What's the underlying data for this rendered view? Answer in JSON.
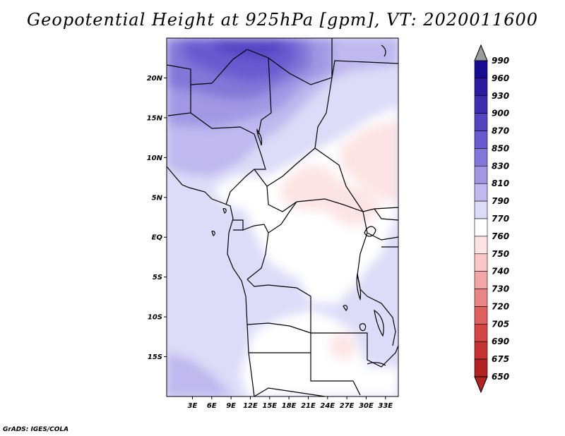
{
  "title": "Geopotential Height at 925hPa [gpm], VT: 2020011600",
  "credit": "GrADS: IGES/COLA",
  "map": {
    "lon_range": [
      -1,
      35
    ],
    "lat_range": [
      -20,
      25
    ],
    "lat_ticks": [
      {
        "value": 20,
        "label": "20N"
      },
      {
        "value": 15,
        "label": "15N"
      },
      {
        "value": 10,
        "label": "10N"
      },
      {
        "value": 5,
        "label": "5N"
      },
      {
        "value": 0,
        "label": "EQ"
      },
      {
        "value": -5,
        "label": "5S"
      },
      {
        "value": -10,
        "label": "10S"
      },
      {
        "value": -15,
        "label": "15S"
      }
    ],
    "lon_ticks": [
      {
        "value": 3,
        "label": "3E"
      },
      {
        "value": 6,
        "label": "6E"
      },
      {
        "value": 9,
        "label": "9E"
      },
      {
        "value": 12,
        "label": "12E"
      },
      {
        "value": 15,
        "label": "15E"
      },
      {
        "value": 18,
        "label": "18E"
      },
      {
        "value": 21,
        "label": "21E"
      },
      {
        "value": 24,
        "label": "24E"
      },
      {
        "value": 27,
        "label": "27E"
      },
      {
        "value": 30,
        "label": "30E"
      },
      {
        "value": 33,
        "label": "33E"
      }
    ]
  },
  "colorbar": {
    "levels": [
      "990",
      "960",
      "930",
      "900",
      "870",
      "850",
      "830",
      "810",
      "790",
      "770",
      "760",
      "750",
      "740",
      "730",
      "720",
      "705",
      "690",
      "675",
      "650"
    ],
    "colors": [
      "#9b9b9b",
      "#170c91",
      "#2c1aa0",
      "#3e2cb0",
      "#5544c2",
      "#6a5ad0",
      "#8476d8",
      "#a397e4",
      "#c0b8ee",
      "#dcdcf8",
      "#ffffff",
      "#fde4e4",
      "#f8c8c8",
      "#f2a6a6",
      "#ea8585",
      "#e05f5f",
      "#d54545",
      "#c43232",
      "#b02424"
    ]
  }
}
